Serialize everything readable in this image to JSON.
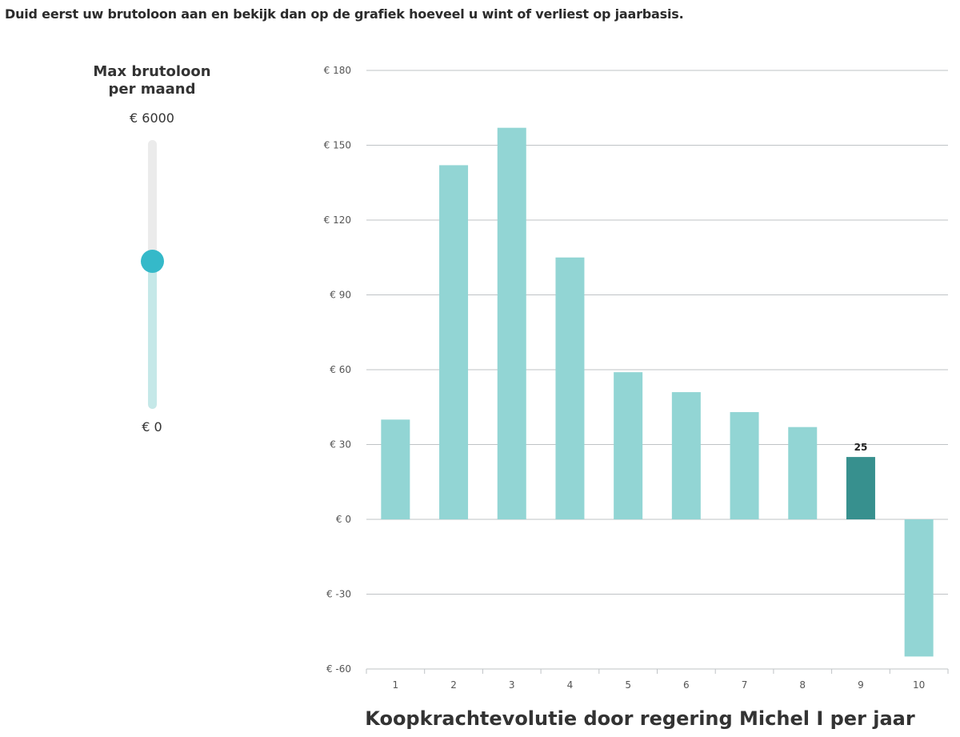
{
  "instruction": "Duid eerst uw brutoloon aan en bekijk dan op de grafiek hoeveel u wint of verliest op jaarbasis.",
  "slider": {
    "title_line1": "Max brutoloon",
    "title_line2": "per maand",
    "max_label": "€ 6000",
    "min_label": "€ 0",
    "max_value": 6000,
    "min_value": 0,
    "fraction": 0.55
  },
  "colors": {
    "bar": "#92d5d4",
    "bar_selected": "#37908e",
    "slider_thumb": "#35b9c9",
    "slider_fill": "#c5e8e8",
    "slider_track": "#ebebeb",
    "grid": "#bfc3c6"
  },
  "chart_data": {
    "type": "bar",
    "title": "Koopkrachtevolutie door regering Michel I per jaar",
    "categories": [
      "1",
      "2",
      "3",
      "4",
      "5",
      "6",
      "7",
      "8",
      "9",
      "10"
    ],
    "values": [
      40,
      142,
      157,
      105,
      59,
      51,
      43,
      37,
      25,
      -55
    ],
    "highlighted_category": "9",
    "highlighted_value_label": "25",
    "ylim": [
      -60,
      180
    ],
    "yticks": [
      -60,
      -30,
      0,
      30,
      60,
      90,
      120,
      150,
      180
    ],
    "ytick_labels": [
      "€ -60",
      "€ -30",
      "€ 0",
      "€ 30",
      "€ 60",
      "€ 90",
      "€ 120",
      "€ 150",
      "€ 180"
    ],
    "grid": true
  }
}
